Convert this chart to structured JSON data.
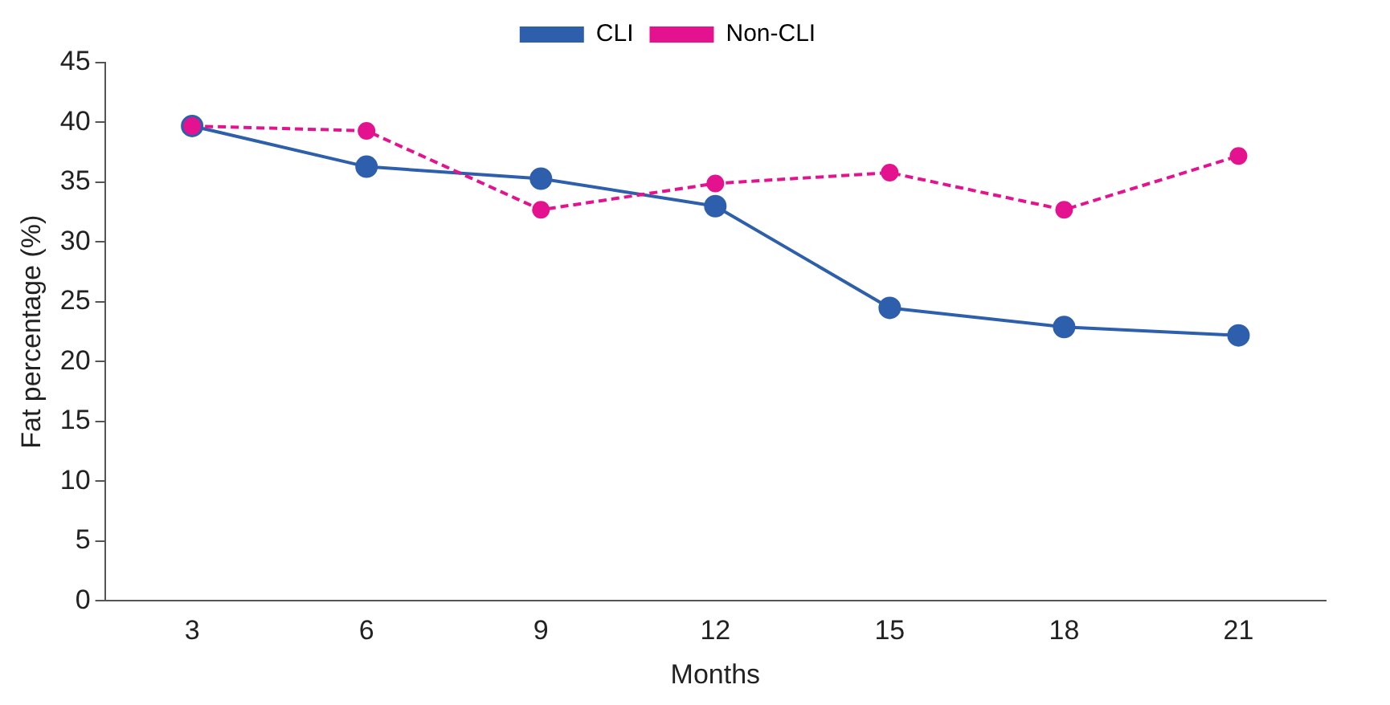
{
  "chart_data": {
    "type": "line",
    "xlabel": "Months",
    "ylabel": "Fat percentage (%)",
    "categories": [
      "3",
      "6",
      "9",
      "12",
      "15",
      "18",
      "21"
    ],
    "series": [
      {
        "name": "CLI",
        "color": "#2e5fac",
        "values": [
          39.7,
          36.3,
          35.3,
          33.0,
          24.5,
          22.9,
          22.2
        ],
        "line_style": "solid"
      },
      {
        "name": "Non-CLI",
        "color": "#e5128f",
        "values": [
          39.7,
          39.3,
          32.7,
          34.9,
          35.8,
          32.7,
          37.2
        ],
        "line_style": "dashed"
      }
    ],
    "ylim": [
      0,
      45
    ],
    "yticks": [
      0,
      5,
      10,
      15,
      20,
      25,
      30,
      35,
      40,
      45
    ],
    "grid": false,
    "legend": "top",
    "marker": "circle"
  }
}
